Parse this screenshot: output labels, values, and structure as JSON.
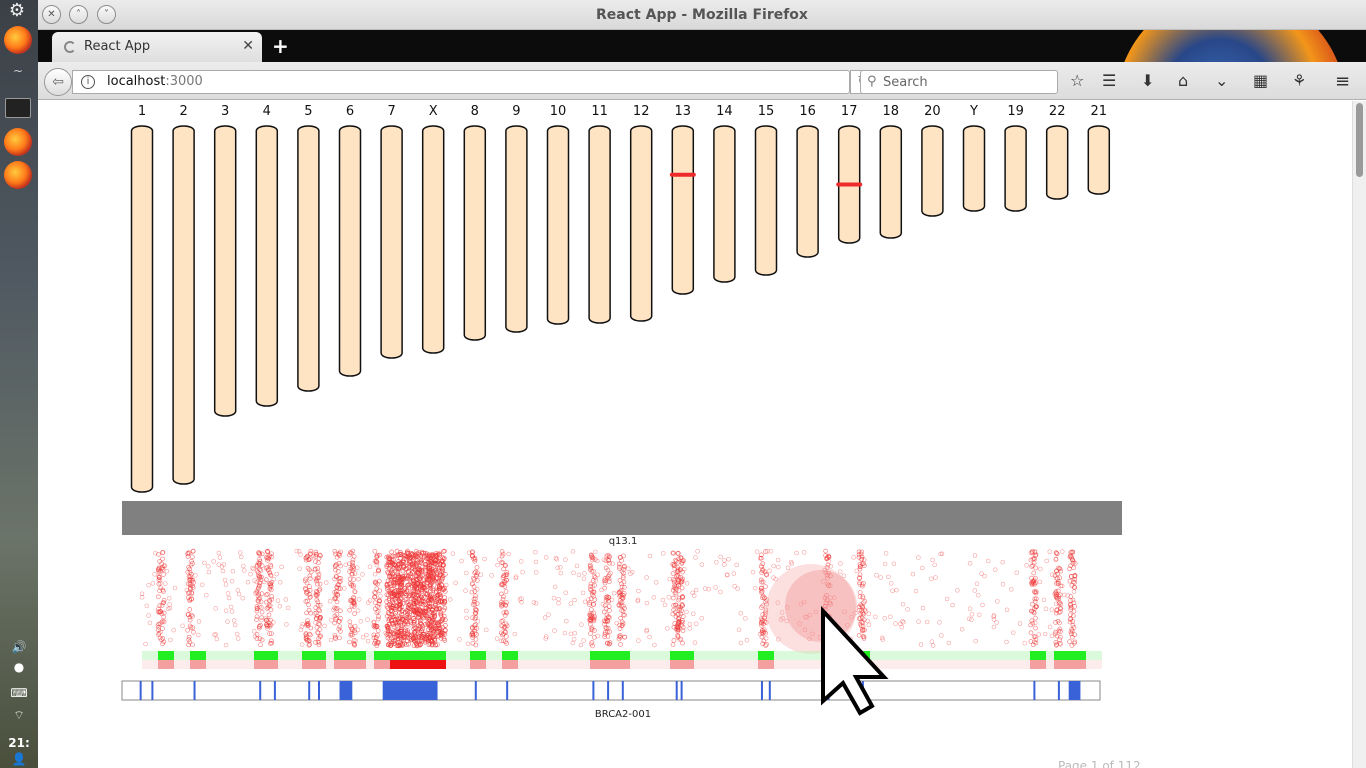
{
  "browser": {
    "window_title": "React App - Mozilla Firefox",
    "tab_title": "React App",
    "url_host": "localhost",
    "url_port": ":3000",
    "search_placeholder": "Search"
  },
  "system": {
    "clock": "21:"
  },
  "ideogram": {
    "chromosomes": [
      {
        "label": "1",
        "length": 366
      },
      {
        "label": "2",
        "length": 358
      },
      {
        "label": "3",
        "length": 290
      },
      {
        "label": "4",
        "length": 280
      },
      {
        "label": "5",
        "length": 265
      },
      {
        "label": "6",
        "length": 250
      },
      {
        "label": "7",
        "length": 232
      },
      {
        "label": "X",
        "length": 227
      },
      {
        "label": "8",
        "length": 214
      },
      {
        "label": "9",
        "length": 206
      },
      {
        "label": "10",
        "length": 198
      },
      {
        "label": "11",
        "length": 197
      },
      {
        "label": "12",
        "length": 195
      },
      {
        "label": "13",
        "length": 168,
        "marker": 0.29
      },
      {
        "label": "14",
        "length": 156
      },
      {
        "label": "15",
        "length": 149
      },
      {
        "label": "16",
        "length": 131
      },
      {
        "label": "17",
        "length": 117,
        "marker": 0.5
      },
      {
        "label": "18",
        "length": 112
      },
      {
        "label": "20",
        "length": 90
      },
      {
        "label": "Y",
        "length": 85
      },
      {
        "label": "19",
        "length": 85
      },
      {
        "label": "22",
        "length": 73
      },
      {
        "label": "21",
        "length": 68
      }
    ],
    "fill_color": "#ffe4c4",
    "marker_color": "#ee2a2a"
  },
  "region": {
    "band_label": "q13.1",
    "gene_label": "BRCA2-001",
    "dot_color": "#ee3333",
    "exon_color": "#3a62d8",
    "hotspots": [
      0.04,
      0.07,
      0.14,
      0.15,
      0.19,
      0.2,
      0.22,
      0.235,
      0.26,
      0.3,
      0.315,
      0.36,
      0.39,
      0.48,
      0.495,
      0.51,
      0.565,
      0.57,
      0.655,
      0.72,
      0.755,
      0.93,
      0.955,
      0.97
    ],
    "dense_range": [
      0.27,
      0.33
    ],
    "exons": [
      0.018,
      0.03,
      0.073,
      0.14,
      0.155,
      0.19,
      0.2,
      0.222,
      0.305,
      0.36,
      0.392,
      0.48,
      0.495,
      0.51,
      0.565,
      0.57,
      0.652,
      0.66,
      0.72,
      0.755,
      0.93,
      0.955
    ],
    "wide_exons": [
      [
        0.222,
        0.235
      ],
      [
        0.266,
        0.322
      ],
      [
        0.966,
        0.978
      ]
    ]
  },
  "pager_text": "Page 1 of 112"
}
